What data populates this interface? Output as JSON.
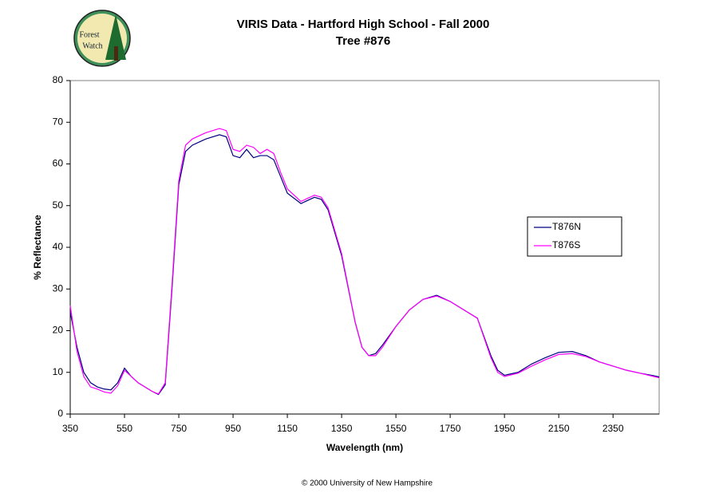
{
  "chart_data": {
    "type": "line",
    "title": "VIRIS Data - Hartford High School - Fall 2000",
    "subtitle": "Tree #876",
    "x_label": "Wavelength (nm)",
    "y_label": "% Reflectance",
    "footer": "© 2000 University of New Hampshire",
    "logo_text": [
      "Forest",
      "Watch"
    ],
    "xlim": [
      350,
      2520
    ],
    "xticks": [
      350,
      550,
      750,
      950,
      1150,
      1350,
      1550,
      1750,
      1950,
      2150,
      2350
    ],
    "ylim": [
      0,
      80
    ],
    "yticks": [
      0,
      10,
      20,
      30,
      40,
      50,
      60,
      70,
      80
    ],
    "grid": false,
    "legend": "right",
    "x": [
      350,
      375,
      400,
      425,
      450,
      475,
      500,
      525,
      550,
      575,
      600,
      625,
      650,
      675,
      700,
      725,
      750,
      775,
      800,
      850,
      900,
      925,
      950,
      975,
      1000,
      1025,
      1050,
      1075,
      1100,
      1125,
      1150,
      1200,
      1250,
      1275,
      1300,
      1350,
      1400,
      1425,
      1450,
      1475,
      1500,
      1550,
      1600,
      1650,
      1700,
      1750,
      1800,
      1850,
      1900,
      1925,
      1950,
      2000,
      2050,
      2100,
      2150,
      2200,
      2250,
      2300,
      2350,
      2400,
      2450,
      2500,
      2520
    ],
    "series": [
      {
        "name": "T876N",
        "color": "#000080",
        "values": [
          24.5,
          16,
          10,
          7.5,
          6.5,
          6,
          5.8,
          7.5,
          11,
          9,
          7.5,
          6.5,
          5.5,
          4.7,
          7,
          30,
          55,
          63,
          64.5,
          66,
          67,
          66.5,
          62,
          61.5,
          63.5,
          61.5,
          62,
          62,
          61,
          57,
          53,
          50.5,
          52,
          51.5,
          49,
          38,
          22,
          16,
          14,
          14.5,
          16.5,
          21,
          25,
          27.5,
          28.5,
          27,
          25,
          23,
          14,
          10.5,
          9.3,
          10,
          12,
          13.5,
          14.8,
          15,
          14,
          12.5,
          11.5,
          10.5,
          9.8,
          9.2,
          8.9
        ]
      },
      {
        "name": "T876S",
        "color": "#ff00ff",
        "values": [
          26,
          15,
          9,
          6.5,
          6,
          5.3,
          5,
          6.8,
          10.5,
          9,
          7.5,
          6.5,
          5.5,
          4.8,
          7.5,
          31,
          56,
          64.5,
          66,
          67.5,
          68.5,
          68,
          63.5,
          63,
          64.5,
          64,
          62.5,
          63.5,
          62.5,
          58,
          54,
          51,
          52.5,
          52,
          49.5,
          38.5,
          22,
          16,
          14,
          14,
          16,
          21,
          25,
          27.5,
          28.3,
          27,
          25,
          23,
          13.5,
          10,
          9,
          9.8,
          11.5,
          13,
          14.3,
          14.5,
          13.8,
          12.5,
          11.5,
          10.5,
          9.8,
          9,
          8.7
        ]
      }
    ]
  }
}
